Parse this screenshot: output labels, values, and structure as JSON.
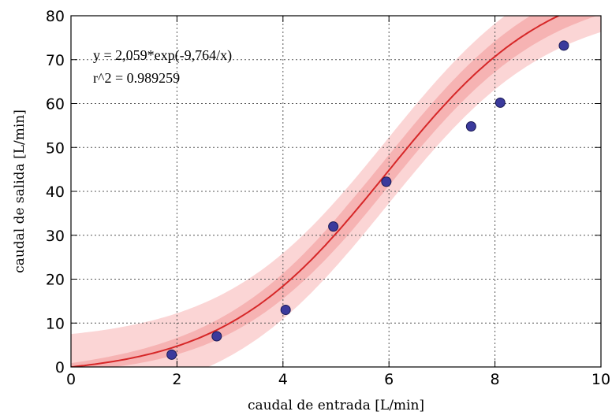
{
  "chart_data": {
    "type": "scatter",
    "xlabel": "caudal de entrada [L/min]",
    "ylabel": "caudal de salida [L/min]",
    "xlim": [
      0,
      10
    ],
    "ylim": [
      0,
      80
    ],
    "x_ticks": [
      "0",
      "2",
      "4",
      "6",
      "8",
      "10"
    ],
    "y_ticks": [
      "0",
      "10",
      "20",
      "30",
      "40",
      "50",
      "60",
      "70",
      "80"
    ],
    "grid": true,
    "annotations": [
      "y = 2,059*exp(-9,764/x)",
      "r^2 = 0.989259"
    ],
    "points": {
      "x": [
        1.9,
        2.75,
        4.05,
        4.95,
        5.95,
        7.55,
        8.1,
        9.3
      ],
      "y": [
        2.8,
        7.0,
        13.0,
        32.0,
        42.2,
        54.8,
        60.2,
        73.2
      ]
    },
    "fit_curve": {
      "x_range": [
        0,
        10
      ]
    },
    "confidence_band_half_width": 3.5,
    "prediction_band_half_width": 7.5,
    "colors": {
      "points": "#3b3a9c",
      "points_edge": "#1a1a55",
      "fit_line": "#d62728",
      "confidence_band": "#f08a8a",
      "prediction_band": "#f7b3b3"
    }
  }
}
